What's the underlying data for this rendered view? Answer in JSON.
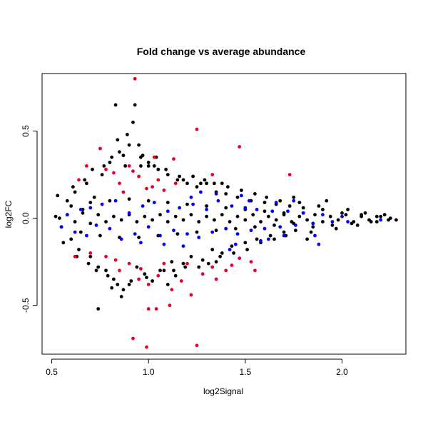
{
  "chart_data": {
    "type": "scatter",
    "title": "Fold change vs average abundance",
    "xlabel": "log2Signal",
    "ylabel": "log2FC",
    "xlim": [
      0.45,
      2.33
    ],
    "ylim": [
      -0.78,
      0.83
    ],
    "x_ticks": [
      0.5,
      1.0,
      1.5,
      2.0
    ],
    "x_tick_labels": [
      "0.5",
      "1.0",
      "1.5",
      "2.0"
    ],
    "y_ticks": [
      -0.5,
      0.0,
      0.5
    ],
    "y_tick_labels": [
      "-0.5",
      "0.0",
      "0.5"
    ],
    "grid": false,
    "legend": "none",
    "colors": {
      "black": "#000000",
      "blue": "#0000ff",
      "red": "#e8002a"
    },
    "series": [
      {
        "color": "black",
        "values": [
          [
            0.52,
            0.01
          ],
          [
            0.55,
            -0.05
          ],
          [
            0.58,
            0.1
          ],
          [
            0.6,
            -0.12
          ],
          [
            0.62,
            0.15
          ],
          [
            0.64,
            -0.18
          ],
          [
            0.66,
            0.05
          ],
          [
            0.68,
            0.2
          ],
          [
            0.7,
            -0.22
          ],
          [
            0.72,
            0.12
          ],
          [
            0.74,
            -0.28
          ],
          [
            0.76,
            0.25
          ],
          [
            0.78,
            -0.3
          ],
          [
            0.8,
            0.32
          ],
          [
            0.82,
            -0.35
          ],
          [
            0.83,
            0.65
          ],
          [
            0.85,
            0.38
          ],
          [
            0.86,
            -0.45
          ],
          [
            0.88,
            0.3
          ],
          [
            0.89,
            0.48
          ],
          [
            0.9,
            -0.38
          ],
          [
            0.92,
            0.55
          ],
          [
            0.93,
            0.65
          ],
          [
            0.94,
            -0.28
          ],
          [
            0.96,
            0.35
          ],
          [
            0.98,
            -0.32
          ],
          [
            1.0,
            0.3
          ],
          [
            1.02,
            -0.36
          ],
          [
            1.05,
            0.28
          ],
          [
            1.08,
            -0.3
          ],
          [
            1.1,
            0.25
          ],
          [
            1.12,
            -0.25
          ],
          [
            1.15,
            0.22
          ],
          [
            1.18,
            -0.26
          ],
          [
            1.2,
            0.2
          ],
          [
            1.22,
            -0.22
          ],
          [
            1.25,
            0.18
          ],
          [
            1.28,
            -0.24
          ],
          [
            1.3,
            0.2
          ],
          [
            1.33,
            -0.18
          ],
          [
            1.35,
            0.15
          ],
          [
            1.38,
            -0.2
          ],
          [
            1.4,
            0.14
          ],
          [
            1.43,
            -0.16
          ],
          [
            1.46,
            0.12
          ],
          [
            1.5,
            -0.14
          ],
          [
            1.53,
            0.1
          ],
          [
            1.56,
            -0.12
          ],
          [
            1.6,
            0.09
          ],
          [
            1.63,
            -0.1
          ],
          [
            1.66,
            0.08
          ],
          [
            1.7,
            -0.08
          ],
          [
            1.73,
            0.07
          ],
          [
            1.76,
            -0.07
          ],
          [
            1.8,
            0.06
          ],
          [
            1.85,
            -0.05
          ],
          [
            1.9,
            0.05
          ],
          [
            1.95,
            -0.04
          ],
          [
            2.0,
            0.03
          ],
          [
            2.05,
            -0.03
          ],
          [
            2.1,
            0.02
          ],
          [
            2.15,
            -0.02
          ],
          [
            2.2,
            0.01
          ],
          [
            2.25,
            0.0
          ],
          [
            2.28,
            -0.01
          ],
          [
            0.74,
            -0.52
          ],
          [
            0.84,
            0.45
          ],
          [
            0.87,
            -0.41
          ],
          [
            1.27,
            0.2
          ],
          [
            1.35,
            -0.25
          ],
          [
            1.38,
            0.2
          ],
          [
            1.75,
            0.12
          ],
          [
            1.82,
            -0.12
          ],
          [
            1.92,
            0.1
          ],
          [
            0.96,
            0.3
          ],
          [
            1.0,
            0.32
          ],
          [
            1.04,
            0.35
          ],
          [
            0.9,
            0.42
          ],
          [
            0.95,
            0.42
          ],
          [
            0.81,
            -0.4
          ],
          [
            1.1,
            -0.38
          ],
          [
            1.14,
            -0.33
          ],
          [
            1.18,
            0.22
          ],
          [
            0.53,
            0.13
          ],
          [
            0.56,
            -0.14
          ],
          [
            0.61,
            0.18
          ],
          [
            0.63,
            -0.22
          ],
          [
            0.67,
            0.22
          ],
          [
            0.69,
            -0.26
          ],
          [
            0.71,
            0.28
          ],
          [
            0.73,
            -0.3
          ],
          [
            0.77,
            0.3
          ],
          [
            0.79,
            -0.33
          ],
          [
            0.81,
            0.35
          ],
          [
            0.84,
            -0.38
          ],
          [
            0.87,
            0.36
          ],
          [
            0.91,
            -0.36
          ],
          [
            0.97,
            0.36
          ],
          [
            0.99,
            -0.34
          ],
          [
            1.03,
            0.3
          ],
          [
            1.06,
            -0.3
          ],
          [
            1.09,
            0.28
          ],
          [
            1.13,
            -0.3
          ],
          [
            1.16,
            0.24
          ],
          [
            1.19,
            -0.28
          ],
          [
            1.23,
            0.24
          ],
          [
            1.26,
            -0.28
          ],
          [
            1.29,
            0.22
          ],
          [
            1.31,
            -0.26
          ],
          [
            1.34,
            0.2
          ],
          [
            1.37,
            -0.22
          ],
          [
            1.41,
            0.18
          ],
          [
            1.44,
            -0.2
          ],
          [
            1.48,
            0.16
          ],
          [
            1.51,
            -0.18
          ],
          [
            1.55,
            0.14
          ],
          [
            1.58,
            -0.14
          ],
          [
            1.61,
            0.12
          ],
          [
            1.65,
            -0.12
          ],
          [
            1.68,
            0.1
          ],
          [
            1.71,
            -0.1
          ],
          [
            1.78,
            0.09
          ],
          [
            1.84,
            -0.08
          ],
          [
            1.88,
            0.07
          ],
          [
            1.97,
            -0.06
          ],
          [
            2.03,
            0.05
          ],
          [
            2.08,
            -0.04
          ],
          [
            2.12,
            0.03
          ],
          [
            2.18,
            -0.02
          ],
          [
            2.22,
            0.02
          ],
          [
            0.54,
            0.0
          ],
          [
            0.58,
            0.02
          ],
          [
            0.62,
            -0.02
          ],
          [
            0.66,
            0.03
          ],
          [
            0.7,
            -0.03
          ],
          [
            0.74,
            0.02
          ],
          [
            0.78,
            -0.02
          ],
          [
            0.82,
            0.01
          ],
          [
            0.86,
            -0.01
          ],
          [
            0.9,
            0.02
          ],
          [
            0.94,
            -0.02
          ],
          [
            0.98,
            0.01
          ],
          [
            1.02,
            -0.01
          ],
          [
            1.06,
            0.02
          ],
          [
            1.1,
            -0.02
          ],
          [
            1.14,
            0.01
          ],
          [
            1.18,
            -0.01
          ],
          [
            1.22,
            0.02
          ],
          [
            1.26,
            -0.02
          ],
          [
            1.3,
            0.01
          ],
          [
            1.34,
            -0.01
          ],
          [
            1.38,
            0.02
          ],
          [
            1.42,
            -0.02
          ],
          [
            1.46,
            0.01
          ],
          [
            1.5,
            -0.01
          ],
          [
            1.54,
            0.02
          ],
          [
            1.58,
            -0.02
          ],
          [
            1.62,
            0.01
          ],
          [
            1.66,
            -0.01
          ],
          [
            1.7,
            0.02
          ],
          [
            1.74,
            -0.02
          ],
          [
            1.78,
            0.01
          ],
          [
            1.82,
            -0.01
          ],
          [
            1.86,
            0.02
          ],
          [
            1.9,
            -0.02
          ],
          [
            1.94,
            0.01
          ],
          [
            1.98,
            -0.01
          ],
          [
            2.02,
            0.02
          ],
          [
            2.06,
            -0.02
          ],
          [
            2.1,
            0.01
          ],
          [
            2.14,
            -0.01
          ],
          [
            2.18,
            0.01
          ],
          [
            2.24,
            -0.01
          ],
          [
            0.6,
            0.07
          ],
          [
            0.65,
            -0.08
          ],
          [
            0.7,
            0.09
          ],
          [
            0.75,
            -0.1
          ],
          [
            0.8,
            0.1
          ],
          [
            0.85,
            -0.11
          ],
          [
            0.9,
            0.11
          ],
          [
            0.95,
            -0.11
          ],
          [
            1.0,
            0.1
          ],
          [
            1.05,
            -0.1
          ],
          [
            1.1,
            0.09
          ],
          [
            1.15,
            -0.09
          ],
          [
            1.2,
            0.08
          ],
          [
            1.25,
            -0.08
          ],
          [
            1.3,
            0.07
          ],
          [
            1.35,
            -0.07
          ],
          [
            1.4,
            0.06
          ],
          [
            1.45,
            -0.06
          ],
          [
            1.5,
            0.05
          ],
          [
            1.55,
            -0.05
          ],
          [
            1.6,
            0.04
          ],
          [
            1.65,
            -0.04
          ],
          [
            1.7,
            0.03
          ],
          [
            1.75,
            -0.03
          ],
          [
            1.8,
            0.03
          ],
          [
            1.85,
            -0.03
          ]
        ]
      },
      {
        "color": "blue",
        "values": [
          [
            0.55,
            -0.05
          ],
          [
            0.58,
            0.02
          ],
          [
            0.62,
            -0.08
          ],
          [
            0.65,
            0.05
          ],
          [
            0.68,
            -0.1
          ],
          [
            0.7,
            0.06
          ],
          [
            0.73,
            -0.04
          ],
          [
            0.76,
            0.08
          ],
          [
            0.8,
            -0.06
          ],
          [
            0.83,
            0.1
          ],
          [
            0.86,
            -0.12
          ],
          [
            0.9,
            0.03
          ],
          [
            0.93,
            -0.09
          ],
          [
            0.97,
            0.07
          ],
          [
            1.0,
            -0.05
          ],
          [
            1.03,
            0.09
          ],
          [
            1.06,
            -0.1
          ],
          [
            1.1,
            0.04
          ],
          [
            1.13,
            -0.07
          ],
          [
            1.16,
            0.06
          ],
          [
            1.2,
            -0.09
          ],
          [
            1.23,
            0.08
          ],
          [
            1.26,
            -0.11
          ],
          [
            1.3,
            0.05
          ],
          [
            1.33,
            -0.08
          ],
          [
            1.36,
            0.1
          ],
          [
            1.4,
            -0.06
          ],
          [
            1.43,
            0.07
          ],
          [
            1.46,
            -0.09
          ],
          [
            1.5,
            0.06
          ],
          [
            1.53,
            -0.07
          ],
          [
            1.56,
            0.05
          ],
          [
            1.6,
            -0.06
          ],
          [
            1.64,
            0.04
          ],
          [
            1.68,
            -0.05
          ],
          [
            1.72,
            0.04
          ],
          [
            1.76,
            -0.04
          ],
          [
            1.8,
            0.03
          ],
          [
            1.85,
            -0.03
          ],
          [
            1.9,
            0.02
          ],
          [
            1.95,
            -0.02
          ],
          [
            2.0,
            0.01
          ],
          [
            1.48,
            0.13
          ],
          [
            1.45,
            -0.15
          ],
          [
            1.35,
            0.14
          ],
          [
            1.42,
            -0.18
          ],
          [
            1.27,
            0.15
          ],
          [
            1.18,
            -0.16
          ],
          [
            1.58,
            -0.13
          ],
          [
            1.62,
            -0.12
          ],
          [
            1.7,
            -0.1
          ],
          [
            1.66,
            0.09
          ],
          [
            1.75,
            0.1
          ],
          [
            1.86,
            -0.1
          ],
          [
            1.88,
            -0.15
          ],
          [
            2.03,
            -0.02
          ],
          [
            2.2,
            -0.01
          ],
          [
            0.96,
            -0.14
          ],
          [
            1.08,
            -0.15
          ],
          [
            1.22,
            0.12
          ],
          [
            1.52,
            0.1
          ]
        ]
      },
      {
        "color": "red",
        "values": [
          [
            0.93,
            0.8
          ],
          [
            1.25,
            0.51
          ],
          [
            1.47,
            0.41
          ],
          [
            0.75,
            0.4
          ],
          [
            1.03,
            0.35
          ],
          [
            1.13,
            0.34
          ],
          [
            0.9,
            0.3
          ],
          [
            1.73,
            0.25
          ],
          [
            1.33,
            0.25
          ],
          [
            0.68,
            0.3
          ],
          [
            0.78,
            0.28
          ],
          [
            0.82,
            0.26
          ],
          [
            0.85,
            0.2
          ],
          [
            0.95,
            0.24
          ],
          [
            1.02,
            0.18
          ],
          [
            1.08,
            0.16
          ],
          [
            1.14,
            0.2
          ],
          [
            0.64,
            0.22
          ],
          [
            0.87,
            0.15
          ],
          [
            0.99,
            0.17
          ],
          [
            1.05,
            0.22
          ],
          [
            0.92,
            0.27
          ],
          [
            0.62,
            -0.22
          ],
          [
            0.7,
            -0.2
          ],
          [
            0.78,
            -0.22
          ],
          [
            0.85,
            -0.3
          ],
          [
            0.9,
            -0.26
          ],
          [
            0.95,
            -0.35
          ],
          [
            1.0,
            -0.38
          ],
          [
            1.05,
            -0.33
          ],
          [
            1.08,
            -0.26
          ],
          [
            1.12,
            -0.41
          ],
          [
            1.17,
            -0.36
          ],
          [
            1.22,
            -0.44
          ],
          [
            1.28,
            -0.32
          ],
          [
            1.33,
            -0.28
          ],
          [
            1.43,
            -0.27
          ],
          [
            1.47,
            -0.23
          ],
          [
            1.55,
            -0.3
          ],
          [
            1.53,
            -0.25
          ],
          [
            1.11,
            -0.5
          ],
          [
            1.0,
            -0.52
          ],
          [
            1.04,
            -0.52
          ],
          [
            0.92,
            -0.69
          ],
          [
            0.99,
            -0.74
          ],
          [
            1.25,
            -0.73
          ],
          [
            0.83,
            -0.24
          ],
          [
            0.96,
            -0.29
          ],
          [
            1.2,
            -0.26
          ],
          [
            1.35,
            -0.35
          ],
          [
            1.4,
            -0.3
          ]
        ]
      }
    ]
  }
}
